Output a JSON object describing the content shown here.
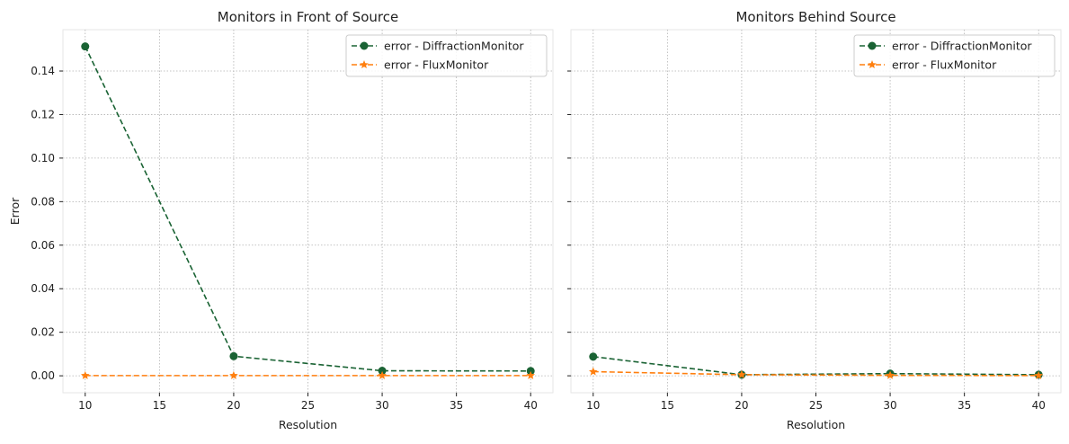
{
  "chart_data": [
    {
      "type": "line",
      "title": "Monitors in Front of Source",
      "xlabel": "Resolution",
      "ylabel": "Error",
      "x": [
        10,
        20,
        30,
        40
      ],
      "xlim": [
        8.5,
        41.5
      ],
      "ylim": [
        -0.0078,
        0.159
      ],
      "xticks": [
        "10",
        "15",
        "20",
        "25",
        "30",
        "35",
        "40"
      ],
      "yticks": [
        "0.00",
        "0.02",
        "0.04",
        "0.06",
        "0.08",
        "0.10",
        "0.12",
        "0.14"
      ],
      "grid": true,
      "legend_position": "top-right",
      "series": [
        {
          "name": "error - DiffractionMonitor",
          "values": [
            0.1513,
            0.009,
            0.0023,
            0.0022
          ],
          "color": "#1a6334",
          "marker": "circle"
        },
        {
          "name": "error - FluxMonitor",
          "values": [
            0.0001,
            0.0001,
            0.0001,
            0.0001
          ],
          "color": "#ff7f0e",
          "marker": "star"
        }
      ]
    },
    {
      "type": "line",
      "title": "Monitors Behind Source",
      "xlabel": "Resolution",
      "ylabel": "",
      "x": [
        10,
        20,
        30,
        40
      ],
      "xlim": [
        8.5,
        41.5
      ],
      "ylim": [
        -0.0078,
        0.159
      ],
      "xticks": [
        "10",
        "15",
        "20",
        "25",
        "30",
        "35",
        "40"
      ],
      "yticks": [],
      "grid": true,
      "legend_position": "top-right",
      "series": [
        {
          "name": "error - DiffractionMonitor",
          "values": [
            0.0088,
            0.0005,
            0.001,
            0.0005
          ],
          "color": "#1a6334",
          "marker": "circle"
        },
        {
          "name": "error - FluxMonitor",
          "values": [
            0.0019,
            0.0005,
            0.0002,
            0.0001
          ],
          "color": "#ff7f0e",
          "marker": "star"
        }
      ]
    }
  ]
}
